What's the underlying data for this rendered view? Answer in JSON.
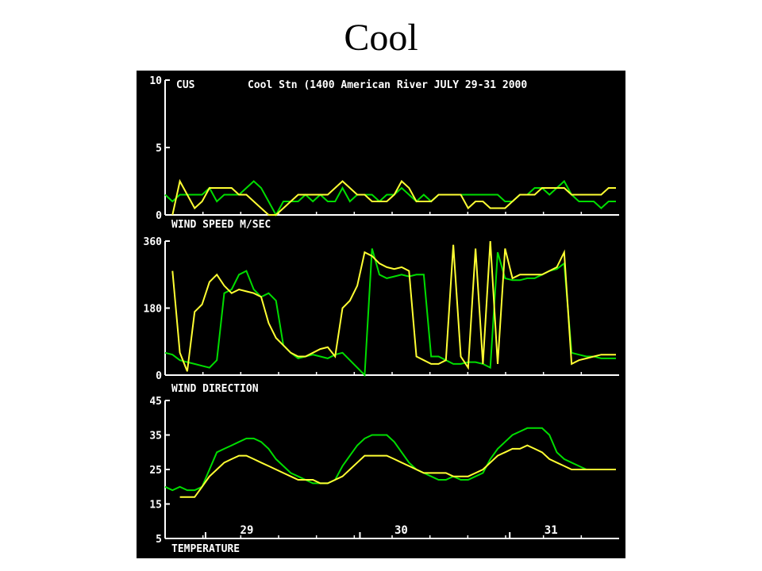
{
  "title": "Cool",
  "header": {
    "station_code": "CUS",
    "station_info": "Cool Stn (1400 American River  JULY 29-31 2000"
  },
  "colors": {
    "background": "#000000",
    "axis": "#ffffff",
    "series_a": "#00dd00",
    "series_b": "#ffff33"
  },
  "chart_data": [
    {
      "type": "line",
      "xlabel": "WIND SPEED M/SEC",
      "ylim": [
        0,
        10
      ],
      "yticks": [
        "0",
        "5",
        "10"
      ],
      "series": [
        {
          "color": "green",
          "values": [
            1.5,
            1,
            1.5,
            1.5,
            1.5,
            1.5,
            2,
            1,
            1.5,
            1.5,
            1.5,
            2,
            2.5,
            2,
            1,
            0,
            1,
            1,
            1,
            1.5,
            1,
            1.5,
            1,
            1,
            2,
            1,
            1.5,
            1.5,
            1.5,
            1,
            1.5,
            1.5,
            2,
            1.5,
            1,
            1.5,
            1,
            1.5,
            1.5,
            1.5,
            1.5,
            1.5,
            1.5,
            1.5,
            1.5,
            1.5,
            1,
            1,
            1.5,
            1.5,
            2,
            2,
            1.5,
            2,
            2.5,
            1.5,
            1,
            1,
            1,
            0.5,
            1,
            1
          ]
        },
        {
          "color": "yellow",
          "values": [
            null,
            0,
            2.5,
            1.5,
            0.5,
            1,
            2,
            2,
            2,
            2,
            1.5,
            1.5,
            1,
            0.5,
            0,
            0,
            0.5,
            1,
            1.5,
            1.5,
            1.5,
            1.5,
            1.5,
            2,
            2.5,
            2,
            1.5,
            1.5,
            1,
            1,
            1,
            1.5,
            2.5,
            2,
            1,
            1,
            1,
            1.5,
            1.5,
            1.5,
            1.5,
            0.5,
            1,
            1,
            0.5,
            0.5,
            0.5,
            1,
            1.5,
            1.5,
            1.5,
            2,
            2,
            2,
            2,
            1.5,
            1.5,
            1.5,
            1.5,
            1.5,
            2,
            2
          ]
        }
      ]
    },
    {
      "type": "line",
      "xlabel": "WIND DIRECTION",
      "ylim": [
        0,
        360
      ],
      "yticks": [
        "0",
        "180",
        "360"
      ],
      "series": [
        {
          "color": "green",
          "values": [
            60,
            55,
            40,
            35,
            30,
            25,
            20,
            40,
            220,
            230,
            270,
            280,
            230,
            210,
            220,
            200,
            80,
            60,
            45,
            50,
            55,
            50,
            45,
            55,
            60,
            40,
            20,
            0,
            340,
            270,
            260,
            265,
            270,
            265,
            270,
            270,
            50,
            50,
            40,
            30,
            30,
            35,
            35,
            30,
            20,
            330,
            260,
            255,
            255,
            260,
            260,
            270,
            280,
            285,
            300,
            60,
            55,
            50,
            50,
            45,
            45,
            45
          ]
        },
        {
          "color": "yellow",
          "values": [
            null,
            280,
            60,
            10,
            170,
            190,
            250,
            270,
            240,
            220,
            230,
            225,
            220,
            210,
            140,
            100,
            80,
            60,
            50,
            50,
            60,
            70,
            75,
            50,
            180,
            200,
            240,
            330,
            320,
            300,
            290,
            285,
            290,
            280,
            50,
            40,
            30,
            30,
            40,
            350,
            50,
            20,
            340,
            30,
            360,
            30,
            340,
            260,
            270,
            270,
            270,
            270,
            280,
            290,
            330,
            30,
            40,
            45,
            50,
            55,
            55,
            55
          ]
        }
      ]
    },
    {
      "type": "line",
      "xlabel": "TEMPERATURE",
      "ylim": [
        5,
        45
      ],
      "yticks": [
        "5",
        "15",
        "25",
        "35",
        "45"
      ],
      "xticks": [
        "29",
        "30",
        "31"
      ],
      "series": [
        {
          "color": "green",
          "values": [
            20,
            19,
            20,
            19,
            19,
            20,
            25,
            30,
            31,
            32,
            33,
            34,
            34,
            33,
            31,
            28,
            26,
            24,
            23,
            22,
            21,
            21,
            21,
            22,
            26,
            29,
            32,
            34,
            35,
            35,
            35,
            33,
            30,
            27,
            25,
            24,
            23,
            22,
            22,
            23,
            22,
            22,
            23,
            24,
            28,
            31,
            33,
            35,
            36,
            37,
            37,
            37,
            35,
            30,
            28,
            27,
            26,
            25,
            25,
            25,
            25,
            25
          ]
        },
        {
          "color": "yellow",
          "values": [
            null,
            null,
            17,
            17,
            17,
            20,
            23,
            25,
            27,
            28,
            29,
            29,
            28,
            27,
            26,
            25,
            24,
            23,
            22,
            22,
            22,
            21,
            21,
            22,
            23,
            25,
            27,
            29,
            29,
            29,
            29,
            28,
            27,
            26,
            25,
            24,
            24,
            24,
            24,
            23,
            23,
            23,
            24,
            25,
            27,
            29,
            30,
            31,
            31,
            32,
            31,
            30,
            28,
            27,
            26,
            25,
            25,
            25,
            25,
            25,
            25,
            25
          ]
        }
      ]
    }
  ]
}
